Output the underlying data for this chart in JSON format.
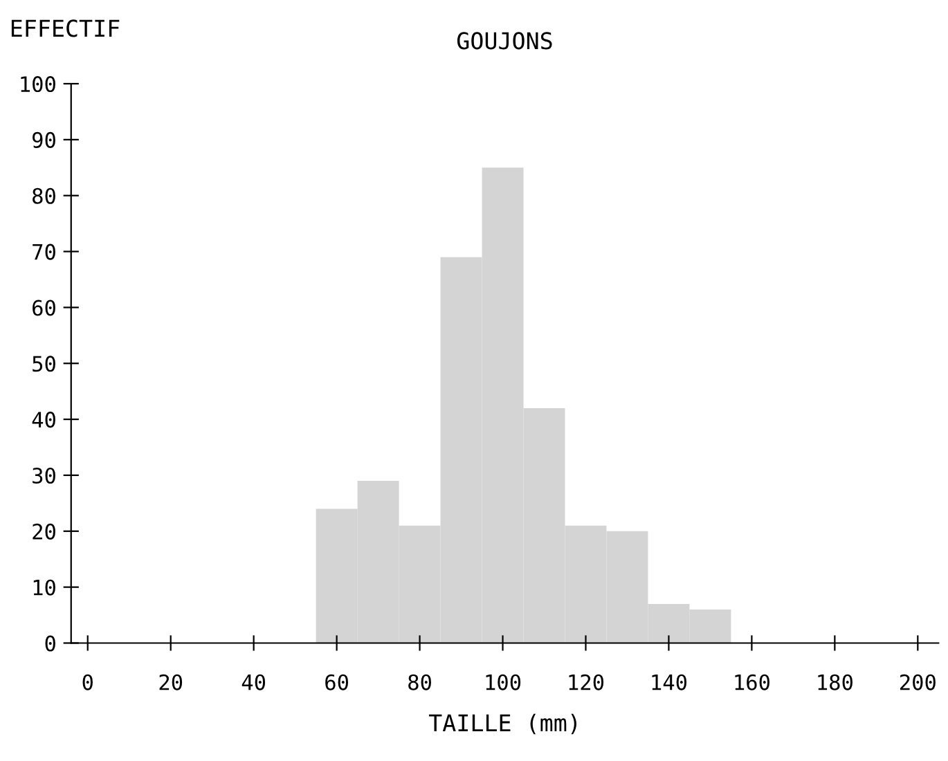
{
  "chart_data": {
    "type": "histogram",
    "title": "GOUJONS",
    "ylabel": "EFFECTIF",
    "xlabel": "TAILLE (mm)",
    "bins": [
      55,
      65,
      75,
      85,
      95,
      105,
      115,
      125,
      135,
      145,
      155
    ],
    "values": [
      24,
      29,
      21,
      69,
      85,
      42,
      21,
      20,
      7,
      6
    ],
    "color": "#d4d4d4",
    "xlim": [
      -4,
      205
    ],
    "xticks": [
      0,
      20,
      40,
      60,
      80,
      100,
      120,
      140,
      160,
      180,
      200
    ],
    "ylim": [
      0,
      100
    ],
    "yticks": [
      0,
      10,
      20,
      30,
      40,
      50,
      60,
      70,
      80,
      90,
      100
    ],
    "grid": false
  }
}
